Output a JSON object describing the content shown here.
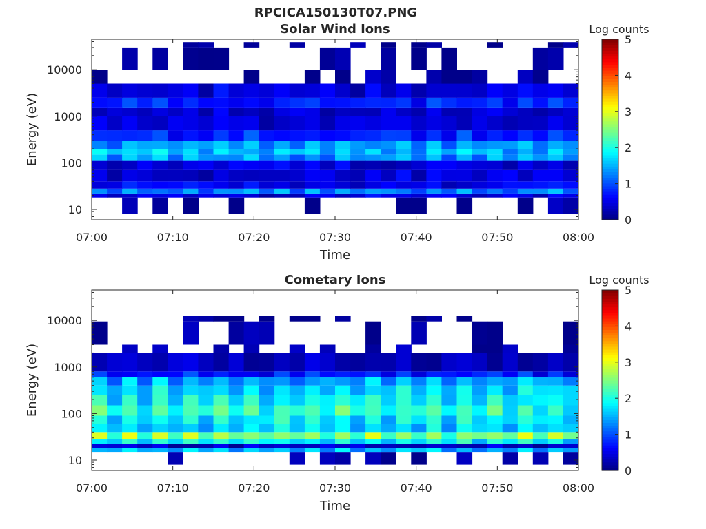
{
  "figure": {
    "title": "RPCICA150130T07.PNG"
  },
  "colorbar_ticks": [
    "0",
    "1",
    "2",
    "3",
    "4",
    "5"
  ],
  "chart_data": [
    {
      "type": "heatmap",
      "title": "Solar Wind Ions",
      "xlabel": "Time",
      "ylabel": "Energy (eV)",
      "x_ticks": [
        "07:00",
        "07:10",
        "07:20",
        "07:30",
        "07:40",
        "07:50",
        "08:00"
      ],
      "xlim": [
        "07:00",
        "08:00"
      ],
      "y_ticks": [
        "10",
        "100",
        "1000",
        "10000"
      ],
      "ylim": [
        6,
        45000
      ],
      "yscale": "log",
      "colorbar_label": "Log counts",
      "clim": [
        0,
        5
      ],
      "colormap": "jet",
      "time_columns": 32,
      "energy_profile": [
        {
          "energy": 8,
          "log_counts": 0.1
        },
        {
          "energy": 18,
          "log_counts": 0.5
        },
        {
          "energy": 22,
          "log_counts": 1.4
        },
        {
          "energy": 28,
          "log_counts": 0.6
        },
        {
          "energy": 40,
          "log_counts": 0.5
        },
        {
          "energy": 70,
          "log_counts": 0.5
        },
        {
          "energy": 110,
          "log_counts": 1.5
        },
        {
          "energy": 150,
          "log_counts": 1.7
        },
        {
          "energy": 200,
          "log_counts": 1.5
        },
        {
          "energy": 300,
          "log_counts": 0.9
        },
        {
          "energy": 500,
          "log_counts": 0.5
        },
        {
          "energy": 1000,
          "log_counts": 0.5
        },
        {
          "energy": 1500,
          "log_counts": 0.9
        },
        {
          "energy": 2500,
          "log_counts": 0.5
        },
        {
          "energy": 5000,
          "log_counts": 0.2
        },
        {
          "energy": 10000,
          "log_counts": 0.1
        },
        {
          "energy": 30000,
          "log_counts": 0.05
        }
      ]
    },
    {
      "type": "heatmap",
      "title": "Cometary Ions",
      "xlabel": "Time",
      "ylabel": "Energy (eV)",
      "x_ticks": [
        "07:00",
        "07:10",
        "07:20",
        "07:30",
        "07:40",
        "07:50",
        "08:00"
      ],
      "xlim": [
        "07:00",
        "08:00"
      ],
      "y_ticks": [
        "10",
        "100",
        "1000",
        "10000"
      ],
      "ylim": [
        6,
        45000
      ],
      "yscale": "log",
      "colorbar_label": "Log counts",
      "clim": [
        0,
        5
      ],
      "colormap": "jet",
      "time_columns": 32,
      "energy_profile": [
        {
          "energy": 8,
          "log_counts": 0.1
        },
        {
          "energy": 15,
          "log_counts": 1.7
        },
        {
          "energy": 18,
          "log_counts": 0.4
        },
        {
          "energy": 22,
          "log_counts": 2.0
        },
        {
          "energy": 28,
          "log_counts": 2.8
        },
        {
          "energy": 40,
          "log_counts": 1.8
        },
        {
          "energy": 60,
          "log_counts": 2.0
        },
        {
          "energy": 90,
          "log_counts": 2.3
        },
        {
          "energy": 150,
          "log_counts": 2.0
        },
        {
          "energy": 250,
          "log_counts": 1.9
        },
        {
          "energy": 400,
          "log_counts": 1.6
        },
        {
          "energy": 600,
          "log_counts": 0.8
        },
        {
          "energy": 800,
          "log_counts": 0.3
        },
        {
          "energy": 2000,
          "log_counts": 0.2
        },
        {
          "energy": 3000,
          "log_counts": 0.1
        },
        {
          "energy": 9500,
          "log_counts": 0.05
        }
      ]
    }
  ]
}
